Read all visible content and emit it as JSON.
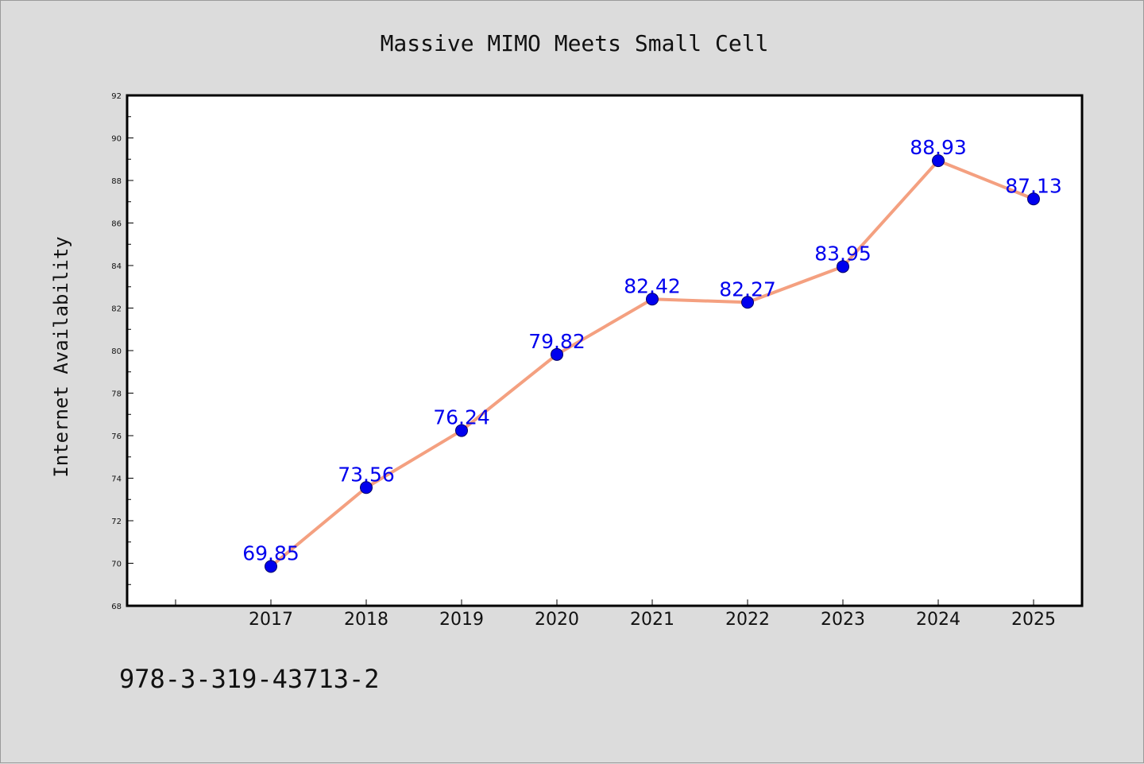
{
  "chart_data": {
    "type": "line",
    "title": "Massive MIMO Meets Small Cell",
    "xlabel": "",
    "ylabel": "Internet Availability",
    "categories": [
      "2017",
      "2018",
      "2019",
      "2020",
      "2021",
      "2022",
      "2023",
      "2024",
      "2025"
    ],
    "series": [
      {
        "values": [
          69.85,
          73.56,
          76.24,
          79.82,
          82.42,
          82.27,
          83.95,
          88.93,
          87.13
        ],
        "line_color": "#f4a080",
        "marker_color": "#0000ee",
        "label_color": "#0000ee"
      }
    ],
    "ylim": [
      68,
      92
    ],
    "yticks": [
      68,
      70,
      72,
      74,
      76,
      78,
      80,
      82,
      84,
      86,
      88,
      90,
      92
    ],
    "grid": false,
    "legend": "none",
    "data_labels": [
      "69.85",
      "73.56",
      "76.24",
      "79.82",
      "82.42",
      "82.27",
      "83.95",
      "88.93",
      "87.13"
    ]
  },
  "footer": {
    "code": "978-3-319-43713-2"
  },
  "colors": {
    "background": "#dcdcdc",
    "plot_background": "#ffffff",
    "axis": "#000000"
  }
}
